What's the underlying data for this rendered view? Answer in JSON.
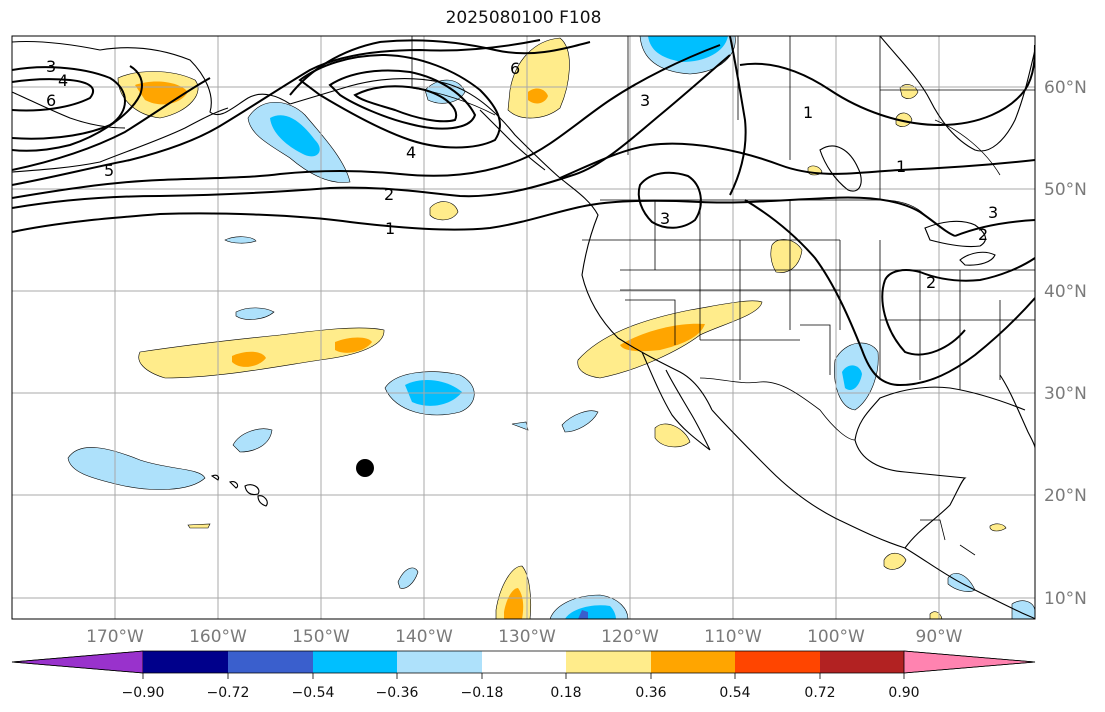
{
  "title": "2025080100 F108",
  "map": {
    "longitude_labels": [
      "170°W",
      "160°W",
      "150°W",
      "140°W",
      "130°W",
      "120°W",
      "110°W",
      "100°W",
      "90°W"
    ],
    "latitude_labels": [
      "60°N",
      "50°N",
      "40°N",
      "30°N",
      "20°N",
      "10°N"
    ],
    "contour_labels": [
      "1",
      "1",
      "1",
      "2",
      "2",
      "2",
      "3",
      "3",
      "3",
      "3",
      "4",
      "4",
      "5",
      "6",
      "6"
    ],
    "marker": "storm-position-dot"
  },
  "colorbar": {
    "tick_labels": [
      "−0.90",
      "−0.72",
      "−0.54",
      "−0.36",
      "−0.18",
      "0.18",
      "0.36",
      "0.54",
      "0.72",
      "0.90"
    ],
    "colors": [
      "#9932cc",
      "#00008b",
      "#3a5fcd",
      "#00bfff",
      "#aee1fb",
      "#ffffff",
      "#ffec8b",
      "#ffa500",
      "#ff4500",
      "#b22222",
      "#ff83b0"
    ]
  }
}
